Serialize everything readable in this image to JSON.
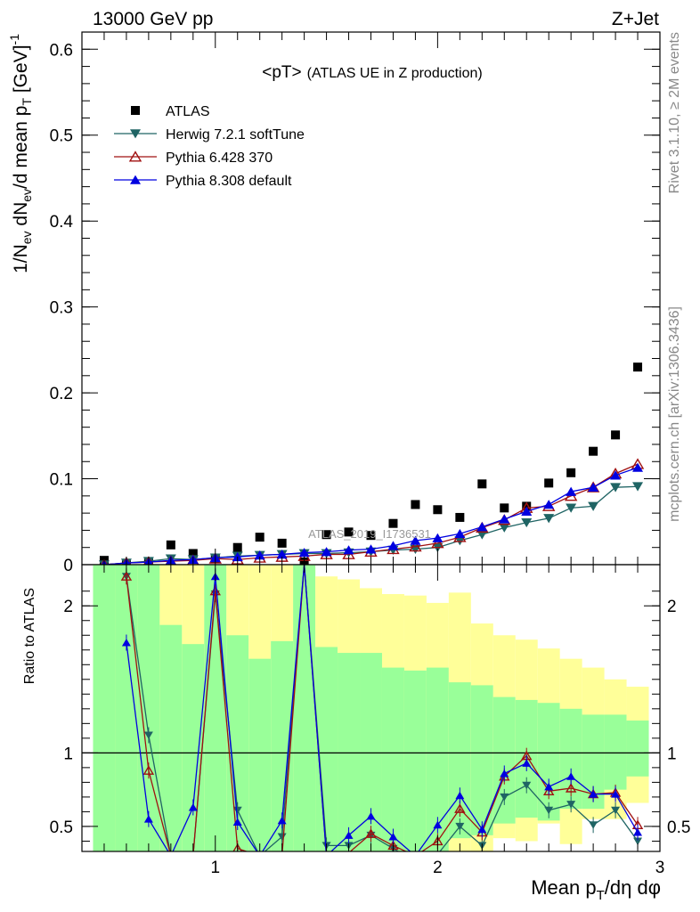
{
  "header": {
    "left": "13000 GeV pp",
    "right": "Z+Jet"
  },
  "side_labels": {
    "rivet": "Rivet 3.1.10, ≥ 2M events",
    "mcplots": "mcplots.cern.ch [arXiv:1306.3436]"
  },
  "watermark": "ATLAS_2019_I1736531",
  "chart_data": [
    {
      "type": "scatter",
      "panel": "main",
      "title_main": "<pT>",
      "title_sub": "(ATLAS UE in Z production)",
      "ylabel": "1/N_ev dN_ev/d mean p_T [GeV]^-1",
      "xlim": [
        0.4,
        3.0
      ],
      "ylim": [
        0,
        0.62
      ],
      "yticks": [
        0,
        0.1,
        0.2,
        0.3,
        0.4,
        0.5,
        0.6
      ],
      "ytick_labels": [
        "0",
        "0.1",
        "0.2",
        "0.3",
        "0.4",
        "0.5",
        "0.6"
      ],
      "x": [
        0.5,
        0.6,
        0.7,
        0.8,
        0.9,
        1.0,
        1.1,
        1.2,
        1.3,
        1.4,
        1.5,
        1.6,
        1.7,
        1.8,
        1.9,
        2.0,
        2.1,
        2.2,
        2.3,
        2.4,
        2.5,
        2.6,
        2.7,
        2.8,
        2.9
      ],
      "series": [
        {
          "name": "ATLAS",
          "marker": "square",
          "color": "#000000",
          "values": [
            0.005,
            0.001,
            0.003,
            0.023,
            0.013,
            0.007,
            0.02,
            0.032,
            0.025,
            0.003,
            0.035,
            0.038,
            0.034,
            0.048,
            0.07,
            0.064,
            0.055,
            0.094,
            0.066,
            0.068,
            0.095,
            0.107,
            0.132,
            0.151,
            0.23
          ]
        },
        {
          "name": "Herwig 7.2.1 softTune",
          "marker": "triangle-down",
          "color": "#1f6464",
          "values": [
            0.0,
            0.002,
            0.004,
            0.007,
            0.006,
            0.008,
            0.01,
            0.011,
            0.012,
            0.013,
            0.013,
            0.014,
            0.015,
            0.017,
            0.018,
            0.02,
            0.028,
            0.035,
            0.043,
            0.049,
            0.054,
            0.066,
            0.068,
            0.09,
            0.091
          ]
        },
        {
          "name": "Pythia 6.428 370",
          "marker": "triangle-up-open",
          "color": "#a01010",
          "values": [
            0.0,
            0.002,
            0.003,
            0.004,
            0.005,
            0.007,
            0.006,
            0.008,
            0.009,
            0.01,
            0.012,
            0.012,
            0.015,
            0.018,
            0.021,
            0.025,
            0.032,
            0.043,
            0.052,
            0.066,
            0.068,
            0.08,
            0.09,
            0.106,
            0.117
          ]
        },
        {
          "name": "Pythia 8.308 default",
          "marker": "triangle-up",
          "color": "#0000e0",
          "values": [
            0.0,
            0.002,
            0.003,
            0.005,
            0.006,
            0.008,
            0.009,
            0.011,
            0.012,
            0.014,
            0.015,
            0.017,
            0.018,
            0.022,
            0.028,
            0.031,
            0.036,
            0.044,
            0.053,
            0.062,
            0.07,
            0.085,
            0.09,
            0.104,
            0.113
          ]
        }
      ],
      "legend_position": "top-left"
    },
    {
      "type": "line",
      "panel": "ratio",
      "ylabel": "Ratio to ATLAS",
      "xlabel": "Mean p_T/dη dφ",
      "xlim": [
        0.4,
        3.0
      ],
      "ylim": [
        0.33,
        2.28
      ],
      "yticks": [
        0.5,
        1,
        2
      ],
      "ytick_labels": [
        "0.5",
        "1",
        "2"
      ],
      "xticks": [
        1,
        2,
        3
      ],
      "xtick_labels": [
        "1",
        "2",
        "3"
      ],
      "reference_line": 1,
      "x": [
        0.5,
        0.6,
        0.7,
        0.8,
        0.9,
        1.0,
        1.1,
        1.2,
        1.3,
        1.4,
        1.5,
        1.6,
        1.7,
        1.8,
        1.9,
        2.0,
        2.1,
        2.2,
        2.3,
        2.4,
        2.5,
        2.6,
        2.7,
        2.8,
        2.9
      ],
      "band_green": {
        "low": [
          0.33,
          0.33,
          0.33,
          0.33,
          0.33,
          0.33,
          0.33,
          0.33,
          0.33,
          0.33,
          0.33,
          0.33,
          0.33,
          0.33,
          0.33,
          0.33,
          0.42,
          0.44,
          0.52,
          0.56,
          0.54,
          0.62,
          0.62,
          0.75,
          0.84
        ],
        "high": [
          2.28,
          2.28,
          2.28,
          1.87,
          1.74,
          2.28,
          1.8,
          1.64,
          1.76,
          2.28,
          1.72,
          1.68,
          1.68,
          1.58,
          1.56,
          1.58,
          1.48,
          1.46,
          1.38,
          1.36,
          1.34,
          1.3,
          1.26,
          1.26,
          1.22
        ]
      },
      "band_yellow": {
        "low": [
          0.33,
          0.33,
          0.33,
          0.33,
          0.33,
          0.33,
          0.33,
          0.33,
          0.33,
          0.33,
          0.33,
          0.33,
          0.33,
          0.33,
          0.33,
          0.33,
          0.33,
          0.33,
          0.42,
          0.4,
          0.52,
          0.38,
          0.55,
          0.55,
          0.66
        ],
        "high": [
          2.28,
          2.28,
          2.28,
          2.28,
          2.28,
          2.28,
          2.28,
          2.28,
          2.28,
          2.28,
          2.2,
          2.18,
          2.12,
          2.08,
          2.07,
          2.02,
          2.09,
          1.88,
          1.8,
          1.77,
          1.71,
          1.64,
          1.58,
          1.5,
          1.45
        ]
      },
      "series": [
        {
          "name": "Herwig 7.2.1 softTune",
          "color": "#1f6464",
          "marker": "triangle-down",
          "values": [
            null,
            2.2,
            1.12,
            0.3,
            0.3,
            2.08,
            0.61,
            0.3,
            0.43,
            2.28,
            0.37,
            0.37,
            0.44,
            0.35,
            0.26,
            0.31,
            0.5,
            0.37,
            0.7,
            0.78,
            0.61,
            0.65,
            0.51,
            0.61,
            0.4
          ]
        },
        {
          "name": "Pythia 6.428 370",
          "color": "#a01010",
          "marker": "triangle-up-open",
          "values": [
            null,
            2.2,
            0.88,
            0.3,
            0.3,
            2.1,
            0.35,
            0.3,
            0.3,
            2.28,
            0.3,
            0.32,
            0.45,
            0.37,
            0.3,
            0.4,
            0.62,
            0.46,
            0.84,
            0.98,
            0.74,
            0.76,
            0.72,
            0.73,
            0.51
          ]
        },
        {
          "name": "Pythia 8.308 default",
          "color": "#0000e0",
          "marker": "triangle-up",
          "values": [
            null,
            1.75,
            0.55,
            0.3,
            0.63,
            2.2,
            0.53,
            0.3,
            0.54,
            2.28,
            0.3,
            0.44,
            0.57,
            0.43,
            0.3,
            0.51,
            0.71,
            0.48,
            0.86,
            0.93,
            0.77,
            0.84,
            0.72,
            0.72,
            0.46
          ]
        }
      ]
    }
  ]
}
